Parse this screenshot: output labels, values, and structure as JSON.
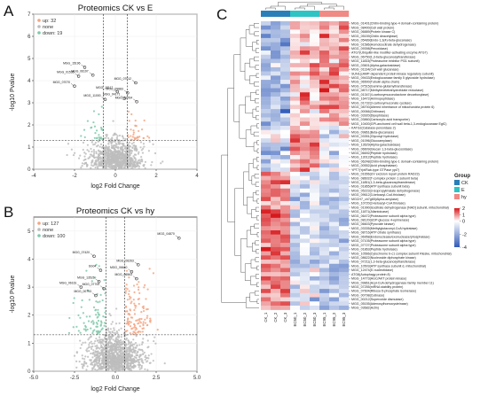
{
  "panels": {
    "a": "A",
    "b": "B",
    "c": "C"
  },
  "chart_data": [
    {
      "type": "scatter",
      "title": "Proteomics CK vs E",
      "xlabel": "log2 Fold Change",
      "ylabel": "-log10 Pvalue",
      "xlim": [
        -4,
        4
      ],
      "ylim": [
        0,
        7
      ],
      "xticks": [
        -4,
        -2,
        0,
        2,
        4
      ],
      "yticks": [
        0,
        1,
        2,
        3,
        4,
        5,
        6,
        7
      ],
      "legend": [
        {
          "key": "up",
          "label": "up: 32",
          "color": "#f4a582"
        },
        {
          "key": "none",
          "label": "none",
          "color": "#bdbdbd"
        },
        {
          "key": "down",
          "label": "down: 19",
          "color": "#7fc8a9"
        }
      ],
      "labeled_points": [
        {
          "x": -1.5,
          "y": 4.6,
          "label": "MGG_15196"
        },
        {
          "x": -1.8,
          "y": 4.2,
          "label": "MGG_01535"
        },
        {
          "x": -1.1,
          "y": 4.25,
          "label": "MGG_06197"
        },
        {
          "x": -2.0,
          "y": 3.75,
          "label": "MGG_07070"
        },
        {
          "x": 1.0,
          "y": 3.9,
          "label": "MGG_07012"
        },
        {
          "x": 0.1,
          "y": 3.5,
          "label": "MGG_15117"
        },
        {
          "x": 0.6,
          "y": 3.45,
          "label": "MGG_09883"
        },
        {
          "x": 0.45,
          "y": 3.2,
          "label": "MGG_04171"
        },
        {
          "x": 1.05,
          "y": 3.05,
          "label": "MGG_12764"
        },
        {
          "x": -0.5,
          "y": 3.15,
          "label": "MGG_11000"
        }
      ]
    },
    {
      "type": "scatter",
      "title": "Proteomics CK vs hy",
      "xlabel": "log2 Fold Change",
      "ylabel": "-log10 Pvalue",
      "xlim": [
        -5,
        5
      ],
      "ylim": [
        0,
        5.5
      ],
      "xticks": [
        -5.0,
        -2.5,
        0.0,
        2.5,
        5.0
      ],
      "yticks": [
        0,
        1,
        2,
        3,
        4,
        5
      ],
      "legend": [
        {
          "key": "up",
          "label": "up: 127",
          "color": "#f4a582"
        },
        {
          "key": "none",
          "label": "none",
          "color": "#bdbdbd"
        },
        {
          "key": "down",
          "label": "down: 100",
          "color": "#7fc8a9"
        }
      ],
      "labeled_points": [
        {
          "x": 3.9,
          "y": 4.75,
          "label": "MGG_04870"
        },
        {
          "x": -1.3,
          "y": 4.1,
          "label": "MGG_07420"
        },
        {
          "x": 1.4,
          "y": 3.8,
          "label": "MGG_06263"
        },
        {
          "x": -0.9,
          "y": 3.6,
          "label": "SG04"
        },
        {
          "x": 1.0,
          "y": 3.55,
          "label": "MGG_06640"
        },
        {
          "x": 1.3,
          "y": 3.3,
          "label": "MGG_06563"
        },
        {
          "x": -1.0,
          "y": 3.2,
          "label": "MGG_13526"
        },
        {
          "x": -0.7,
          "y": 2.95,
          "label": "MGG_07700"
        },
        {
          "x": -2.1,
          "y": 3.0,
          "label": "MGG_06161"
        },
        {
          "x": -1.2,
          "y": 2.7,
          "label": "MGG_00793"
        }
      ]
    },
    {
      "type": "heatmap",
      "columns": [
        "CK_1",
        "CK_2",
        "CK_3",
        "EC50_1",
        "EC50_2",
        "EC50_3",
        "EC95_1",
        "EC95_2",
        "EC95_3"
      ],
      "groups": [
        "CK",
        "CK",
        "CK",
        "E",
        "E",
        "E",
        "hy",
        "hy",
        "hy"
      ],
      "group_colors": {
        "CK": "#2a7fb8",
        "E": "#2ec4c4",
        "hy": "#f08a84"
      },
      "color_scale": {
        "min": -4,
        "max": 2,
        "ticks": [
          2,
          1,
          0,
          -2,
          -4
        ],
        "low": "#2f5ab8",
        "mid": "#ffffff",
        "high": "#d7191c"
      },
      "legend_titles": {
        "group": "Group",
        "scale": ""
      },
      "rows": [
        "MGG_01401(Chitin-binding type-4 domain-containing protein)",
        "MGG_08400(Cell wall protein)",
        "MGG_06889(Protein kinase C)",
        "MGG_05159(Chitin deacetylase)",
        "MGG_05489(Endo-1,3(4)-beta-glucanase)",
        "MGG_01586(Homoisocitrate dehydrogenase)",
        "MGG_09398(Peroxidase)",
        "ATG7(Ubiquitin-like modifier-activating enzyme ATG7)",
        "MGG_06750(1,3-beta-glucanosyltransferase)",
        "MGG_11833(Proteasome inhibitor PI31 subunit)",
        "MGG_03601(Alpha-galactosidase)",
        "MGG_01134(Cell wall glucanase)",
        "SUN1(cAMP-dependent protein kinase regulatory subunit)",
        "MGG_09433(Endoglucanase family 5 glycoside hydrolase)",
        "MGG_06500(Tubulin alpha chain)",
        "MGG_07515(Gamma-glutamyltransferase)",
        "MGG_08717(Methylenetetrahydrofolate reductase)",
        "MGG_01347(4-carboxymuconolactone decarboxylase)",
        "MGG_16472(Aminopeptidase)",
        "MGG_01732(3-carboxymuconate cyclase)",
        "MGG_08700(Altered inheritance of mitochondria protein 6)",
        "MGG_00066(Chitinase)",
        "MGG_03920(Dipeptidase)",
        "MGG_03860(Carboxylic acid transporter)",
        "MGG_10400(GPI-anchored cell wall beta-1,3-endoglucanase EglC)",
        "KATG2(Catalase-peroxidase 2)",
        "MGG_09861(Beta-glucanase)",
        "MGG_03351(Glycosyl hydrolase)",
        "MGG_01096(Glucoamylase)",
        "MGG_13629(Alpha-galactosidase)",
        "MGG_06609(Glucan 1,3-beta-glucosidase)",
        "MGG_06692(Peptide hydrolase)",
        "MGG_13012(Peptide hydrolase)",
        "MGG_06248(Chitin-binding type-1 domain-containing protein)",
        "MGG_00552(Acid phosphatase)",
        "YPT7(Ypt/Rab-type GTPase ypt7)",
        "MGG_01656(UV excision repair protein RAD23)",
        "MGG_08602(T-complex protein 1 subunit beta)",
        "MGG_11851(1,3-beta-glucanosyltransferase)",
        "MGG_01865(ATP synthase subunit beta)",
        "MGG_05223(3-isopropylmalate dehydrogenase)",
        "MGG_09612(3-ketoacyl-CoA thiolase)",
        "MGCH7_ch7g65(Alpha-amylase)",
        "MGG_10720(3-ketoacyl-CoA thiolase)",
        "MGG_01990(Isocitrate dehydrogenase [NAD] subunit, mitochondrial)",
        "MGG_11871(Allantoicase)",
        "MGG_06472(Proteasome subunit alpha type)",
        "MGG_08120(UDP-glucose 4-epimerase)",
        "MGG_06603(Pyruvate kinase)",
        "MGG_03335(Methylglutaconyl-CoA hydratase)",
        "MGG_08716(ATP citrate synthase)",
        "MGG_06958(Endonuclease/exonuclease/phosphatase)",
        "MGG_07105(Proteasome subunit alpha type)",
        "MGG_07727(Proteasome subunit alpha type)",
        "MGG_01863(Peptide hydrolase)",
        "MGG_10566(Cytochrome b-c1 complex subunit Rieske, mitochondrial)",
        "MGG_08622(Nucleoside diphosphate kinase)",
        "MGG_07211(1,3-beta-glucanosyltransferase)",
        "MGG_10503(ATP synthase subunit d, mitochondrial)",
        "MGG_12474(5'-nucleotidase)",
        "ATG8(Autophagy protein 8)",
        "MGG_14773(AGC/AKT protein kinase)",
        "MGG_09861(Acyl-CoA dehydrogenase family member 11)",
        "MGG_07255(mRNA stability protein)",
        "MGG_07604(Ribose-5-phosphate isomerase)",
        "MGG_00798(Cutinase)",
        "MGG_00212(Superoxide dismutase)",
        "MGG_05155(Adenosylhomocysteinase)",
        "MGG_03682(Actin)"
      ]
    }
  ]
}
